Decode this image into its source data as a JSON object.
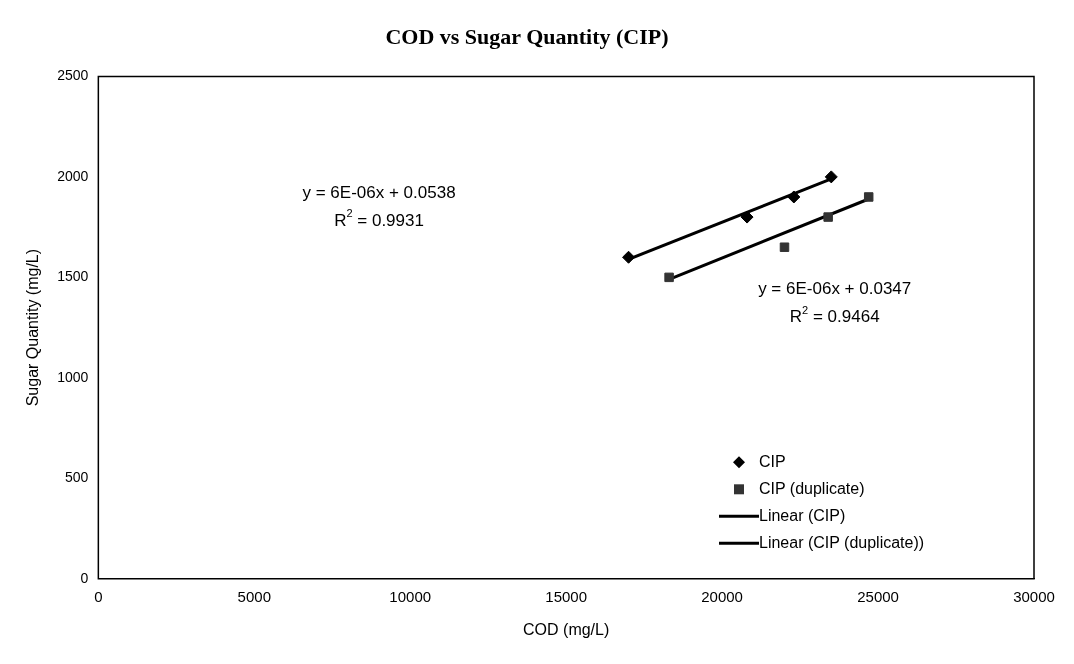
{
  "chart_data": {
    "type": "scatter",
    "title": "COD vs Sugar Quantity (CIP)",
    "xlabel": "COD (mg/L)",
    "ylabel": "Sugar Quantity (mg/L)",
    "xlim": [
      0,
      30000
    ],
    "xticks": [
      0,
      5000,
      10000,
      15000,
      20000,
      25000,
      30000
    ],
    "ylim": [
      0,
      2500
    ],
    "yticks": [
      0,
      500,
      1000,
      1500,
      2000,
      2500
    ],
    "grid": false,
    "legend": "bottom right",
    "line_style": "solid",
    "series": [
      {
        "name": "CIP",
        "marker": "diamond",
        "color": "#000000",
        "x": [
          17000,
          20800,
          22300,
          23500
        ],
        "values": [
          1600,
          1800,
          1900,
          2000
        ]
      },
      {
        "name": "CIP (duplicate)",
        "marker": "square",
        "color": "#333333",
        "x": [
          18300,
          22000,
          23400,
          24700
        ],
        "values": [
          1500,
          1650,
          1800,
          1900
        ]
      },
      {
        "name": "Linear (CIP)",
        "type": "line",
        "marker": "none",
        "color": "#000000",
        "x": [
          17000,
          23500
        ],
        "values": [
          1590,
          1990
        ]
      },
      {
        "name": "Linear (CIP (duplicate))",
        "type": "line",
        "marker": "none",
        "color": "#000000",
        "x": [
          18300,
          24700
        ],
        "values": [
          1490,
          1890
        ]
      }
    ],
    "annotations": [
      "y = 6E-06x + 0.0538",
      "R$^{2}$ = 0.9931",
      "y = 6E-06x + 0.0347",
      "R$^{2}$ = 0.9464"
    ]
  }
}
